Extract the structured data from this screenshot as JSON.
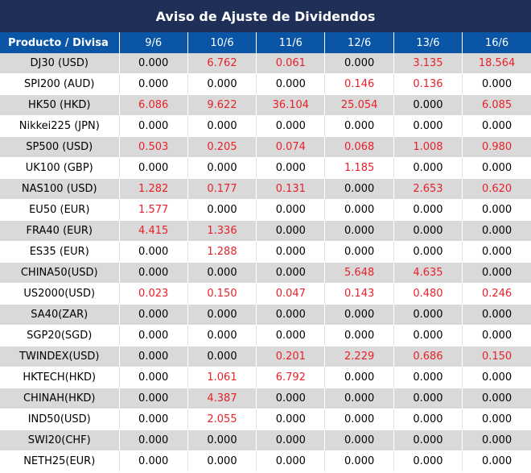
{
  "title": "Aviso de Ajuste de Dividendos",
  "header": {
    "product_label": "Producto / Divisa",
    "dates": [
      "9/6",
      "10/6",
      "11/6",
      "12/6",
      "13/6",
      "16/6"
    ]
  },
  "colors": {
    "title_bg": "#1f2f57",
    "header_bg": "#0a55a6",
    "highlight": "#e8202a",
    "stripe": "#d9d9d9"
  },
  "rows": [
    {
      "product": "DJ30 (USD)",
      "values": [
        "0.000",
        "6.762",
        "0.061",
        "0.000",
        "3.135",
        "18.564"
      ]
    },
    {
      "product": "SPI200 (AUD)",
      "values": [
        "0.000",
        "0.000",
        "0.000",
        "0.146",
        "0.136",
        "0.000"
      ]
    },
    {
      "product": "HK50 (HKD)",
      "values": [
        "6.086",
        "9.622",
        "36.104",
        "25.054",
        "0.000",
        "6.085"
      ]
    },
    {
      "product": "Nikkei225 (JPN)",
      "values": [
        "0.000",
        "0.000",
        "0.000",
        "0.000",
        "0.000",
        "0.000"
      ]
    },
    {
      "product": "SP500 (USD)",
      "values": [
        "0.503",
        "0.205",
        "0.074",
        "0.068",
        "1.008",
        "0.980"
      ]
    },
    {
      "product": "UK100 (GBP)",
      "values": [
        "0.000",
        "0.000",
        "0.000",
        "1.185",
        "0.000",
        "0.000"
      ]
    },
    {
      "product": "NAS100 (USD)",
      "values": [
        "1.282",
        "0.177",
        "0.131",
        "0.000",
        "2.653",
        "0.620"
      ]
    },
    {
      "product": "EU50 (EUR)",
      "values": [
        "1.577",
        "0.000",
        "0.000",
        "0.000",
        "0.000",
        "0.000"
      ]
    },
    {
      "product": "FRA40 (EUR)",
      "values": [
        "4.415",
        "1.336",
        "0.000",
        "0.000",
        "0.000",
        "0.000"
      ]
    },
    {
      "product": "ES35 (EUR)",
      "values": [
        "0.000",
        "1.288",
        "0.000",
        "0.000",
        "0.000",
        "0.000"
      ]
    },
    {
      "product": "CHINA50(USD)",
      "values": [
        "0.000",
        "0.000",
        "0.000",
        "5.648",
        "4.635",
        "0.000"
      ]
    },
    {
      "product": "US2000(USD)",
      "values": [
        "0.023",
        "0.150",
        "0.047",
        "0.143",
        "0.480",
        "0.246"
      ]
    },
    {
      "product": "SA40(ZAR)",
      "values": [
        "0.000",
        "0.000",
        "0.000",
        "0.000",
        "0.000",
        "0.000"
      ]
    },
    {
      "product": "SGP20(SGD)",
      "values": [
        "0.000",
        "0.000",
        "0.000",
        "0.000",
        "0.000",
        "0.000"
      ]
    },
    {
      "product": "TWINDEX(USD)",
      "values": [
        "0.000",
        "0.000",
        "0.201",
        "2.229",
        "0.686",
        "0.150"
      ]
    },
    {
      "product": "HKTECH(HKD)",
      "values": [
        "0.000",
        "1.061",
        "6.792",
        "0.000",
        "0.000",
        "0.000"
      ]
    },
    {
      "product": "CHINAH(HKD)",
      "values": [
        "0.000",
        "4.387",
        "0.000",
        "0.000",
        "0.000",
        "0.000"
      ]
    },
    {
      "product": "IND50(USD)",
      "values": [
        "0.000",
        "2.055",
        "0.000",
        "0.000",
        "0.000",
        "0.000"
      ]
    },
    {
      "product": "SWI20(CHF)",
      "values": [
        "0.000",
        "0.000",
        "0.000",
        "0.000",
        "0.000",
        "0.000"
      ]
    },
    {
      "product": "NETH25(EUR)",
      "values": [
        "0.000",
        "0.000",
        "0.000",
        "0.000",
        "0.000",
        "0.000"
      ]
    }
  ]
}
